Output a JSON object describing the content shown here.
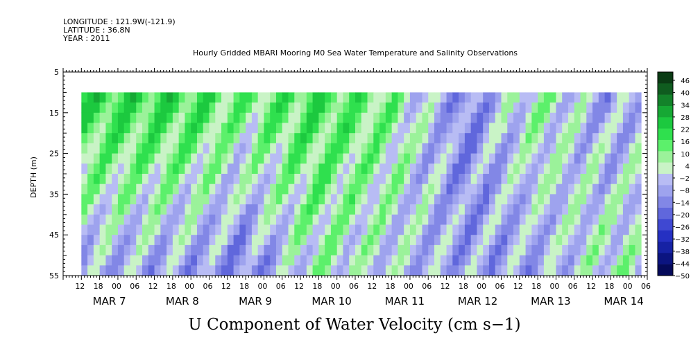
{
  "header": {
    "longitude": "LONGITUDE : 121.9W(-121.9)",
    "latitude": "LATITUDE : 36.8N",
    "year": "YEAR : 2011",
    "title": "Hourly Gridded MBARI Mooring M0 Sea Water Temperature and Salinity Observations"
  },
  "chart_data": {
    "type": "heatmap",
    "title": "Hourly Gridded MBARI Mooring M0 Sea Water Temperature and Salinity Observations",
    "xlabel": "U Component of Water Velocity (cm s−1)",
    "ylabel": "DEPTH (m)",
    "ylim": [
      5,
      55
    ],
    "y_inverted": true,
    "y_ticks": [
      5,
      15,
      25,
      35,
      45,
      55
    ],
    "data_depth_range": [
      10,
      55
    ],
    "x_start": "MAR 6 12:00",
    "x_end": "MAR 14 12:00",
    "data_time_start": "MAR 6 18:00",
    "x_hour_ticks": [
      "12",
      "18",
      "00",
      "06",
      "12",
      "18",
      "00",
      "06",
      "12",
      "18",
      "00",
      "06",
      "12",
      "18",
      "00",
      "06",
      "12",
      "18",
      "00",
      "06",
      "12",
      "18",
      "00",
      "06",
      "12",
      "18",
      "00",
      "06",
      "12",
      "18",
      "00",
      "06"
    ],
    "x_day_labels": [
      "MAR  7",
      "MAR  8",
      "MAR  9",
      "MAR 10",
      "MAR 11",
      "MAR 12",
      "MAR 13",
      "MAR 14"
    ],
    "colorbar": {
      "min": -50,
      "max": 50,
      "labels": [
        "46",
        "40",
        "34",
        "28",
        "22",
        "16",
        "10",
        "4",
        "−2",
        "−8",
        "−14",
        "−20",
        "−26",
        "−32",
        "−38",
        "−44",
        "−50"
      ],
      "colors": [
        "#0a3b14",
        "#0f5c1f",
        "#13822a",
        "#16a834",
        "#1cc93f",
        "#2fe04e",
        "#5cf06b",
        "#9bf29a",
        "#c9f3c6",
        "#b8bcf4",
        "#9ea3ee",
        "#8287e6",
        "#6067dc",
        "#3f48d2",
        "#2530c2",
        "#1622a4",
        "#0b1480",
        "#050a5a"
      ]
    },
    "u_velocity_by_day": [
      {
        "day": "MAR 7",
        "surface_cm_s": 20,
        "bottom_cm_s": -8
      },
      {
        "day": "MAR 8",
        "surface_cm_s": 12,
        "bottom_cm_s": -14
      },
      {
        "day": "MAR 9",
        "surface_cm_s": 18,
        "bottom_cm_s": 4
      },
      {
        "day": "MAR 10",
        "surface_cm_s": 10,
        "bottom_cm_s": -2
      },
      {
        "day": "MAR 11",
        "surface_cm_s": -14,
        "bottom_cm_s": -8
      },
      {
        "day": "MAR 12",
        "surface_cm_s": 8,
        "bottom_cm_s": -8
      },
      {
        "day": "MAR 13",
        "surface_cm_s": -10,
        "bottom_cm_s": 6
      },
      {
        "day": "MAR 14",
        "surface_cm_s": 10,
        "bottom_cm_s": -4
      }
    ]
  }
}
